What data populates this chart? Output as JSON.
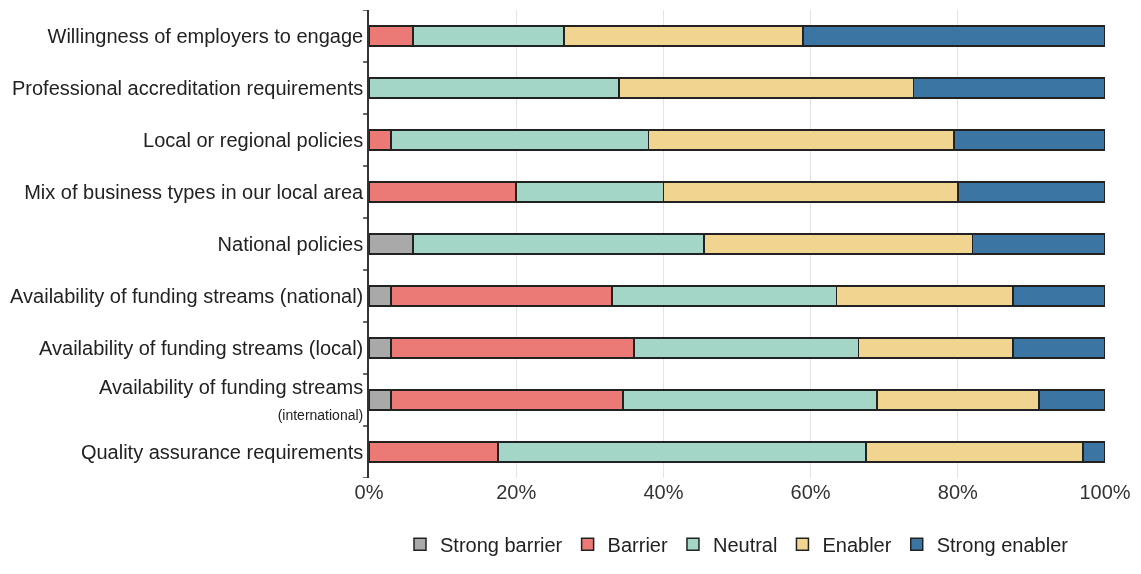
{
  "chart_data": {
    "type": "bar",
    "orientation": "horizontal",
    "stacked": true,
    "categories": [
      "Willingness of employers to engage",
      "Professional accreditation requirements",
      "Local or regional policies",
      "Mix of business types in our local area",
      "National policies",
      "Availability of funding streams (national)",
      "Availability of funding streams (local)",
      "Availability of funding streams\n(international)",
      "Quality assurance requirements"
    ],
    "series": [
      {
        "name": "Strong barrier",
        "color": "#a9a9a9",
        "values": [
          0,
          0,
          0,
          0,
          6,
          3,
          3,
          3,
          0
        ]
      },
      {
        "name": "Barrier",
        "color": "#eb7a76",
        "values": [
          6,
          0,
          3,
          20,
          0,
          30,
          33,
          31.5,
          17.5
        ]
      },
      {
        "name": "Neutral",
        "color": "#a3d6c7",
        "values": [
          20.5,
          34,
          35,
          20,
          39.5,
          30.5,
          30.5,
          34.5,
          50
        ]
      },
      {
        "name": "Enabler",
        "color": "#f0d48f",
        "values": [
          32.5,
          40,
          41.5,
          40,
          36.5,
          24,
          21,
          22,
          29.5
        ]
      },
      {
        "name": "Strong enabler",
        "color": "#3a75a3",
        "values": [
          41,
          26,
          20.5,
          20,
          18,
          12.5,
          12.5,
          9,
          3
        ]
      }
    ],
    "xlim": [
      0,
      100
    ],
    "xticks": [
      {
        "value": 0,
        "label": "0%"
      },
      {
        "value": 20,
        "label": "20%"
      },
      {
        "value": 40,
        "label": "40%"
      },
      {
        "value": 60,
        "label": "60%"
      },
      {
        "value": 80,
        "label": "80%"
      },
      {
        "value": 100,
        "label": "100%"
      }
    ],
    "grid": "x",
    "legend": "bottom"
  }
}
